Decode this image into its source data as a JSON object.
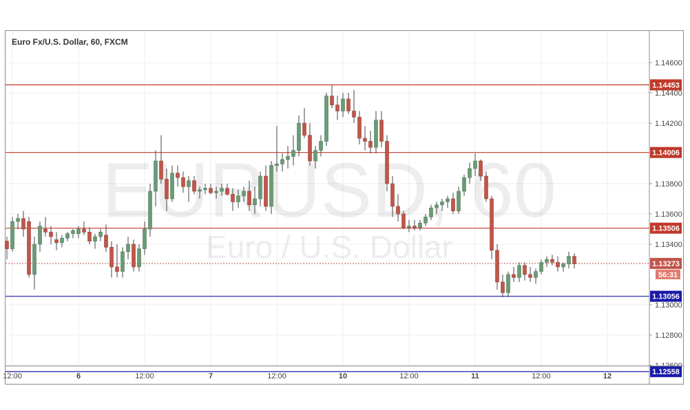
{
  "chart_title": "Euro Fx/U.S. Dollar, 60, FXCM",
  "watermark": {
    "symbol": "EURUSD, 60",
    "name": "Euro / U.S. Dollar"
  },
  "colors": {
    "up_body": "#6b9b76",
    "down_body": "#c0564a",
    "wick": "#444444",
    "resistance_line": "#c0392b",
    "support_line": "#1a1aa8",
    "price_line": "#c0564a",
    "grid": "#ececec",
    "axis_text": "#444444"
  },
  "chart_data": {
    "type": "candlestick",
    "title": "Euro Fx/U.S. Dollar, 60, FXCM",
    "xlabel": "",
    "ylabel": "",
    "ylim": [
      1.125,
      1.147
    ],
    "grid": true,
    "y_ticks": [
      "1.14600",
      "1.14400",
      "1.14200",
      "1.13800",
      "1.13600",
      "1.13400",
      "1.13000",
      "1.12800",
      "1.12600"
    ],
    "x_ticks": [
      {
        "label": "12:00",
        "bar": 1
      },
      {
        "label": "6",
        "bar": 13
      },
      {
        "label": "12:00",
        "bar": 25
      },
      {
        "label": "7",
        "bar": 37
      },
      {
        "label": "12:00",
        "bar": 49
      },
      {
        "label": "10",
        "bar": 61
      },
      {
        "label": "12:00",
        "bar": 73
      },
      {
        "label": "11",
        "bar": 85
      },
      {
        "label": "12:00",
        "bar": 97
      },
      {
        "label": "12",
        "bar": 109
      }
    ],
    "horizontal_levels": [
      {
        "label": "1.14453",
        "value": 1.14453,
        "kind": "resistance"
      },
      {
        "label": "1.14006",
        "value": 1.14006,
        "kind": "resistance"
      },
      {
        "label": "1.13506",
        "value": 1.13506,
        "kind": "resistance"
      },
      {
        "label": "1.13056",
        "value": 1.13056,
        "kind": "support"
      },
      {
        "label": "1.12558",
        "value": 1.12558,
        "kind": "support"
      }
    ],
    "current_price": {
      "label": "1.13273",
      "value": 1.13273,
      "countdown": "56:31"
    },
    "ohlc": [
      [
        1.1342,
        1.1345,
        1.133,
        1.1337
      ],
      [
        1.1337,
        1.1358,
        1.1335,
        1.1355
      ],
      [
        1.1355,
        1.136,
        1.135,
        1.1357
      ],
      [
        1.1357,
        1.1362,
        1.1345,
        1.135
      ],
      [
        1.1355,
        1.1358,
        1.1318,
        1.132
      ],
      [
        1.132,
        1.1345,
        1.131,
        1.134
      ],
      [
        1.134,
        1.1355,
        1.1335,
        1.1352
      ],
      [
        1.135,
        1.1358,
        1.1345,
        1.1348
      ],
      [
        1.1348,
        1.1352,
        1.134,
        1.1345
      ],
      [
        1.1343,
        1.1348,
        1.1336,
        1.1341
      ],
      [
        1.1341,
        1.1346,
        1.1338,
        1.1344
      ],
      [
        1.1344,
        1.1348,
        1.1342,
        1.1347
      ],
      [
        1.1347,
        1.135,
        1.1344,
        1.1349
      ],
      [
        1.1347,
        1.1352,
        1.1344,
        1.135
      ],
      [
        1.135,
        1.1355,
        1.1346,
        1.1348
      ],
      [
        1.1348,
        1.1351,
        1.134,
        1.1342
      ],
      [
        1.1342,
        1.1347,
        1.1337,
        1.1345
      ],
      [
        1.1345,
        1.135,
        1.1342,
        1.1348
      ],
      [
        1.1346,
        1.1353,
        1.1335,
        1.1338
      ],
      [
        1.1338,
        1.1342,
        1.1318,
        1.1325
      ],
      [
        1.1325,
        1.134,
        1.1318,
        1.1322
      ],
      [
        1.1322,
        1.1338,
        1.1318,
        1.1335
      ],
      [
        1.1335,
        1.1345,
        1.133,
        1.134
      ],
      [
        1.134,
        1.1343,
        1.1322,
        1.1325
      ],
      [
        1.1325,
        1.134,
        1.1322,
        1.1337
      ],
      [
        1.1337,
        1.1355,
        1.1333,
        1.135
      ],
      [
        1.135,
        1.138,
        1.1345,
        1.1375
      ],
      [
        1.1375,
        1.1402,
        1.1365,
        1.1395
      ],
      [
        1.1395,
        1.1412,
        1.138,
        1.1383
      ],
      [
        1.1383,
        1.139,
        1.1362,
        1.137
      ],
      [
        1.137,
        1.1392,
        1.1368,
        1.1387
      ],
      [
        1.1387,
        1.1392,
        1.1378,
        1.1384
      ],
      [
        1.1384,
        1.1388,
        1.1374,
        1.1378
      ],
      [
        1.1378,
        1.1385,
        1.1368,
        1.1382
      ],
      [
        1.1382,
        1.1385,
        1.1373,
        1.1375
      ],
      [
        1.1375,
        1.1378,
        1.137,
        1.1376
      ],
      [
        1.1376,
        1.138,
        1.1373,
        1.1377
      ],
      [
        1.1377,
        1.138,
        1.1373,
        1.1374
      ],
      [
        1.1374,
        1.1378,
        1.137,
        1.1375
      ],
      [
        1.1375,
        1.138,
        1.1372,
        1.1377
      ],
      [
        1.1377,
        1.138,
        1.1372,
        1.1373
      ],
      [
        1.1373,
        1.1377,
        1.1362,
        1.1368
      ],
      [
        1.1368,
        1.1376,
        1.1364,
        1.1372
      ],
      [
        1.1372,
        1.1378,
        1.1368,
        1.1375
      ],
      [
        1.1375,
        1.1382,
        1.1362,
        1.1366
      ],
      [
        1.1366,
        1.1378,
        1.136,
        1.137
      ],
      [
        1.137,
        1.1388,
        1.1365,
        1.1385
      ],
      [
        1.1385,
        1.1392,
        1.1362,
        1.1365
      ],
      [
        1.1365,
        1.1395,
        1.136,
        1.1392
      ],
      [
        1.1392,
        1.1418,
        1.1388,
        1.1393
      ],
      [
        1.1393,
        1.14,
        1.1388,
        1.1396
      ],
      [
        1.1396,
        1.1405,
        1.139,
        1.1398
      ],
      [
        1.1398,
        1.1412,
        1.1392,
        1.1402
      ],
      [
        1.1402,
        1.1425,
        1.1398,
        1.142
      ],
      [
        1.142,
        1.143,
        1.141,
        1.1412
      ],
      [
        1.1412,
        1.142,
        1.1392,
        1.1395
      ],
      [
        1.1395,
        1.1405,
        1.139,
        1.1402
      ],
      [
        1.1402,
        1.1412,
        1.1398,
        1.1408
      ],
      [
        1.1408,
        1.144,
        1.1405,
        1.1438
      ],
      [
        1.1438,
        1.1445,
        1.143,
        1.1432
      ],
      [
        1.1432,
        1.1438,
        1.1422,
        1.1428
      ],
      [
        1.1428,
        1.144,
        1.1424,
        1.1436
      ],
      [
        1.1436,
        1.144,
        1.1426,
        1.1428
      ],
      [
        1.1428,
        1.1442,
        1.142,
        1.1424
      ],
      [
        1.1424,
        1.1428,
        1.1406,
        1.141
      ],
      [
        1.141,
        1.1418,
        1.1402,
        1.1408
      ],
      [
        1.1408,
        1.1415,
        1.14,
        1.1404
      ],
      [
        1.1404,
        1.1428,
        1.14,
        1.1422
      ],
      [
        1.1422,
        1.1428,
        1.1404,
        1.1408
      ],
      [
        1.1408,
        1.1412,
        1.1375,
        1.138
      ],
      [
        1.138,
        1.1385,
        1.1358,
        1.1365
      ],
      [
        1.1365,
        1.1373,
        1.1355,
        1.136
      ],
      [
        1.136,
        1.1362,
        1.135,
        1.1351
      ],
      [
        1.1351,
        1.1356,
        1.1348,
        1.1352
      ],
      [
        1.1352,
        1.1356,
        1.1349,
        1.1351
      ],
      [
        1.1351,
        1.1356,
        1.1349,
        1.1354
      ],
      [
        1.1354,
        1.136,
        1.1352,
        1.1358
      ],
      [
        1.1358,
        1.1366,
        1.1356,
        1.1364
      ],
      [
        1.1364,
        1.1368,
        1.136,
        1.1366
      ],
      [
        1.1366,
        1.137,
        1.1362,
        1.1368
      ],
      [
        1.1368,
        1.1372,
        1.1364,
        1.137
      ],
      [
        1.137,
        1.1374,
        1.136,
        1.1362
      ],
      [
        1.1362,
        1.1378,
        1.136,
        1.1375
      ],
      [
        1.1375,
        1.1386,
        1.1372,
        1.1384
      ],
      [
        1.1384,
        1.1394,
        1.138,
        1.139
      ],
      [
        1.139,
        1.14,
        1.1385,
        1.1395
      ],
      [
        1.1395,
        1.1396,
        1.1382,
        1.1385
      ],
      [
        1.1385,
        1.1388,
        1.1368,
        1.137
      ],
      [
        1.137,
        1.1372,
        1.133,
        1.1336
      ],
      [
        1.1336,
        1.134,
        1.131,
        1.1315
      ],
      [
        1.1315,
        1.132,
        1.1305,
        1.1308
      ],
      [
        1.1308,
        1.1322,
        1.1305,
        1.132
      ],
      [
        1.132,
        1.1325,
        1.1315,
        1.1318
      ],
      [
        1.1318,
        1.1328,
        1.1315,
        1.1326
      ],
      [
        1.1326,
        1.1328,
        1.1316,
        1.132
      ],
      [
        1.132,
        1.1325,
        1.1315,
        1.1318
      ],
      [
        1.1318,
        1.1324,
        1.1314,
        1.1322
      ],
      [
        1.1322,
        1.133,
        1.132,
        1.1328
      ],
      [
        1.1328,
        1.1332,
        1.1325,
        1.133
      ],
      [
        1.133,
        1.1333,
        1.1326,
        1.1328
      ],
      [
        1.1328,
        1.1332,
        1.1322,
        1.1325
      ],
      [
        1.1325,
        1.1328,
        1.1322,
        1.1327
      ],
      [
        1.1327,
        1.1335,
        1.1324,
        1.1332
      ],
      [
        1.1332,
        1.1334,
        1.1324,
        1.1327
      ]
    ]
  }
}
